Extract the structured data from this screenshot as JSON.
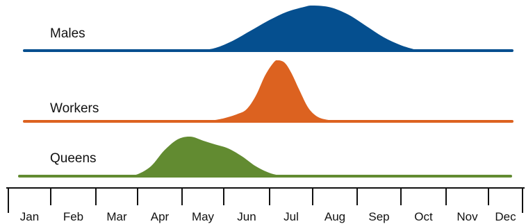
{
  "chart_data": {
    "type": "area",
    "title": "",
    "xlabel": "",
    "ylabel": "",
    "categories": [
      "Jan",
      "Feb",
      "Mar",
      "Apr",
      "May",
      "Jun",
      "Jul",
      "Aug",
      "Sep",
      "Oct",
      "Nov",
      "Dec"
    ],
    "grid": false,
    "legend": "none",
    "series": [
      {
        "name": "Males",
        "color": "#054f8f",
        "x": [
          0,
          4.4,
          4.8,
          5.2,
          5.6,
          6.0,
          6.4,
          6.8,
          7.0,
          7.4,
          7.8,
          8.2,
          8.6,
          9.0,
          9.4,
          12
        ],
        "values": [
          0,
          0,
          0.06,
          0.22,
          0.45,
          0.68,
          0.86,
          0.97,
          1.0,
          0.96,
          0.8,
          0.55,
          0.3,
          0.12,
          0.0,
          0
        ]
      },
      {
        "name": "Workers",
        "color": "#dc6220",
        "x": [
          0,
          4.6,
          5.0,
          5.3,
          5.5,
          5.7,
          5.9,
          6.1,
          6.2,
          6.35,
          6.5,
          6.7,
          6.9,
          7.1,
          7.3,
          7.6,
          12
        ],
        "values": [
          0,
          0,
          0.05,
          0.12,
          0.2,
          0.42,
          0.75,
          0.97,
          1.0,
          0.96,
          0.8,
          0.5,
          0.22,
          0.08,
          0.03,
          0,
          0
        ]
      },
      {
        "name": "Queens",
        "color": "#628b31",
        "x": [
          0,
          2.7,
          3.0,
          3.3,
          3.6,
          3.9,
          4.2,
          4.5,
          4.8,
          5.1,
          5.4,
          5.7,
          6.0,
          6.3,
          12
        ],
        "values": [
          0,
          0,
          0.05,
          0.25,
          0.65,
          0.93,
          1.0,
          0.9,
          0.8,
          0.7,
          0.5,
          0.25,
          0.08,
          0,
          0
        ]
      }
    ]
  }
}
